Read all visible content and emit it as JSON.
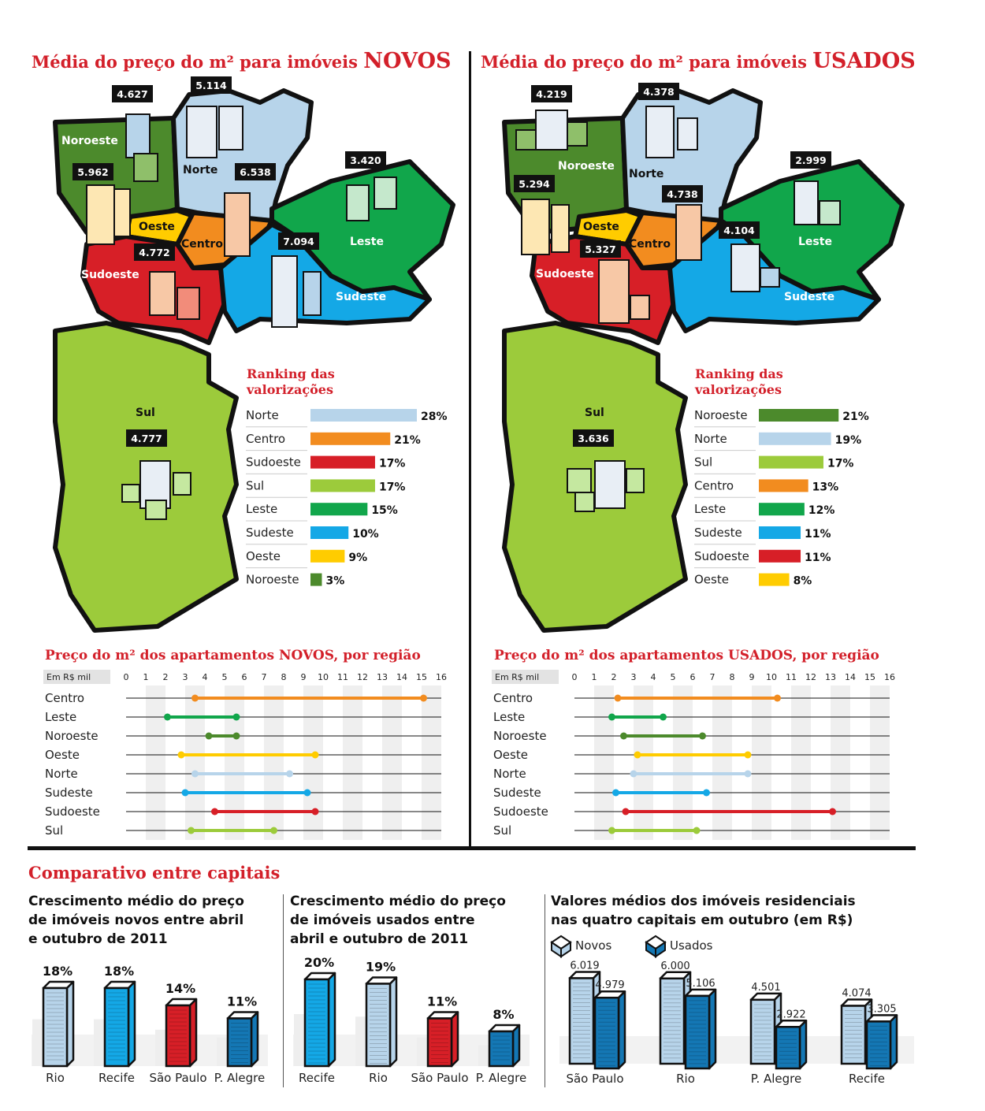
{
  "novos": {
    "title_prefix": "Média do preço do m² para imóveis ",
    "title_emph": "NOVOS",
    "regions": [
      {
        "name": "Noroeste",
        "price": "4.627"
      },
      {
        "name": "Norte",
        "price": "5.114"
      },
      {
        "name": "Oeste",
        "price": "5.962"
      },
      {
        "name": "Centro",
        "price": "6.538"
      },
      {
        "name": "Leste",
        "price": "3.420"
      },
      {
        "name": "Sudoeste",
        "price": "4.772"
      },
      {
        "name": "Sudeste",
        "price": "7.094"
      },
      {
        "name": "Sul",
        "price": "4.777"
      }
    ],
    "ranking_title": [
      "Ranking das",
      "valorizações"
    ],
    "ranking": [
      {
        "name": "Norte",
        "value": 28,
        "label": "28%",
        "color": "#b7d4ea"
      },
      {
        "name": "Centro",
        "value": 21,
        "label": "21%",
        "color": "#f28c1f"
      },
      {
        "name": "Sudoeste",
        "value": 17,
        "label": "17%",
        "color": "#d71f27"
      },
      {
        "name": "Sul",
        "value": 17,
        "label": "17%",
        "color": "#9ccb3b"
      },
      {
        "name": "Leste",
        "value": 15,
        "label": "15%",
        "color": "#11a64b"
      },
      {
        "name": "Sudeste",
        "value": 10,
        "label": "10%",
        "color": "#14a8e6"
      },
      {
        "name": "Oeste",
        "value": 9,
        "label": "9%",
        "color": "#ffcc00"
      },
      {
        "name": "Noroeste",
        "value": 3,
        "label": "3%",
        "color": "#4c8a2c"
      }
    ]
  },
  "usados": {
    "title_prefix": "Média do preço do m² para imóveis ",
    "title_emph": "USADOS",
    "regions": [
      {
        "name": "Noroeste",
        "price": "4.219"
      },
      {
        "name": "Norte",
        "price": "4.378"
      },
      {
        "name": "Oeste",
        "price": "5.294"
      },
      {
        "name": "Centro",
        "price": "4.738"
      },
      {
        "name": "Leste",
        "price": "2.999"
      },
      {
        "name": "Sudoeste",
        "price": "5.327"
      },
      {
        "name": "Sudeste",
        "price": "4.104"
      },
      {
        "name": "Sul",
        "price": "3.636"
      }
    ],
    "ranking_title": [
      "Ranking das",
      "valorizações"
    ],
    "ranking": [
      {
        "name": "Noroeste",
        "value": 21,
        "label": "21%",
        "color": "#4c8a2c"
      },
      {
        "name": "Norte",
        "value": 19,
        "label": "19%",
        "color": "#b7d4ea"
      },
      {
        "name": "Sul",
        "value": 17,
        "label": "17%",
        "color": "#9ccb3b"
      },
      {
        "name": "Centro",
        "value": 13,
        "label": "13%",
        "color": "#f28c1f"
      },
      {
        "name": "Leste",
        "value": 12,
        "label": "12%",
        "color": "#11a64b"
      },
      {
        "name": "Sudeste",
        "value": 11,
        "label": "11%",
        "color": "#14a8e6"
      },
      {
        "name": "Sudoeste",
        "value": 11,
        "label": "11%",
        "color": "#d71f27"
      },
      {
        "name": "Oeste",
        "value": 8,
        "label": "8%",
        "color": "#ffcc00"
      }
    ]
  },
  "chart_data": [
    {
      "type": "bar",
      "title": "Preço do m² dos apartamentos NOVOS, por região",
      "unit_label": "Em R$ mil",
      "xlim": [
        0,
        16
      ],
      "ticks": [
        0,
        1,
        2,
        3,
        4,
        5,
        6,
        7,
        8,
        9,
        10,
        11,
        12,
        13,
        14,
        15,
        16
      ],
      "ranges": [
        {
          "name": "Centro",
          "min": 3.5,
          "max": 15.1,
          "color": "#f28c1f"
        },
        {
          "name": "Leste",
          "min": 2.1,
          "max": 5.6,
          "color": "#11a64b"
        },
        {
          "name": "Noroeste",
          "min": 4.2,
          "max": 5.6,
          "color": "#4c8a2c"
        },
        {
          "name": "Oeste",
          "min": 2.8,
          "max": 9.6,
          "color": "#ffcc00"
        },
        {
          "name": "Norte",
          "min": 3.5,
          "max": 8.3,
          "color": "#b7d4ea"
        },
        {
          "name": "Sudeste",
          "min": 3.0,
          "max": 9.2,
          "color": "#14a8e6"
        },
        {
          "name": "Sudoeste",
          "min": 4.5,
          "max": 9.6,
          "color": "#d71f27"
        },
        {
          "name": "Sul",
          "min": 3.3,
          "max": 7.5,
          "color": "#9ccb3b"
        }
      ]
    },
    {
      "type": "bar",
      "title": "Preço do m² dos apartamentos USADOS, por região",
      "unit_label": "Em R$ mil",
      "xlim": [
        0,
        16
      ],
      "ticks": [
        0,
        1,
        2,
        3,
        4,
        5,
        6,
        7,
        8,
        9,
        10,
        11,
        12,
        13,
        14,
        15,
        16
      ],
      "ranges": [
        {
          "name": "Centro",
          "min": 2.2,
          "max": 10.3,
          "color": "#f28c1f"
        },
        {
          "name": "Leste",
          "min": 1.9,
          "max": 4.5,
          "color": "#11a64b"
        },
        {
          "name": "Noroeste",
          "min": 2.5,
          "max": 6.5,
          "color": "#4c8a2c"
        },
        {
          "name": "Oeste",
          "min": 3.2,
          "max": 8.8,
          "color": "#ffcc00"
        },
        {
          "name": "Norte",
          "min": 3.0,
          "max": 8.8,
          "color": "#b7d4ea"
        },
        {
          "name": "Sudeste",
          "min": 2.1,
          "max": 6.7,
          "color": "#14a8e6"
        },
        {
          "name": "Sudoeste",
          "min": 2.6,
          "max": 13.1,
          "color": "#d71f27"
        },
        {
          "name": "Sul",
          "min": 1.9,
          "max": 6.2,
          "color": "#9ccb3b"
        }
      ]
    },
    {
      "type": "bar",
      "title": "Crescimento médio do preço de imóveis novos entre abril e outubro de 2011",
      "title_lines": [
        "Crescimento médio do preço",
        "de imóveis novos entre abril",
        "e outubro de 2011"
      ],
      "categories": [
        "Rio",
        "Recife",
        "São Paulo",
        "P. Alegre"
      ],
      "values": [
        18,
        18,
        14,
        11
      ],
      "labels": [
        "18%",
        "18%",
        "14%",
        "11%"
      ],
      "colors": [
        "#b7d4ea",
        "#14a8e6",
        "#d71f27",
        "#1477b4"
      ]
    },
    {
      "type": "bar",
      "title": "Crescimento médio do preço de imóveis usados entre abril e outubro de 2011",
      "title_lines": [
        "Crescimento médio do preço",
        "de imóveis usados entre",
        "abril e outubro de 2011"
      ],
      "categories": [
        "Recife",
        "Rio",
        "São Paulo",
        "P. Alegre"
      ],
      "values": [
        20,
        19,
        11,
        8
      ],
      "labels": [
        "20%",
        "19%",
        "11%",
        "8%"
      ],
      "colors": [
        "#14a8e6",
        "#b7d4ea",
        "#d71f27",
        "#1477b4"
      ]
    },
    {
      "type": "bar",
      "title": "Valores médios dos imóveis residenciais nas quatro capitais em outubro (em R$)",
      "title_lines": [
        "Valores médios dos imóveis residenciais",
        "nas quatro capitais em outubro (em R$)"
      ],
      "categories": [
        "São Paulo",
        "Rio",
        "P. Alegre",
        "Recife"
      ],
      "series": [
        {
          "name": "Novos",
          "values": [
            6019,
            6000,
            4501,
            4074
          ],
          "labels": [
            "6.019",
            "6.000",
            "4.501",
            "4.074"
          ],
          "color": "#b7d4ea"
        },
        {
          "name": "Usados",
          "values": [
            4979,
            5106,
            2922,
            3305
          ],
          "labels": [
            "4.979",
            "5.106",
            "2.922",
            "3.305"
          ],
          "color": "#1477b4"
        }
      ]
    }
  ],
  "comparativo": {
    "title": "Comparativo entre capitais"
  }
}
